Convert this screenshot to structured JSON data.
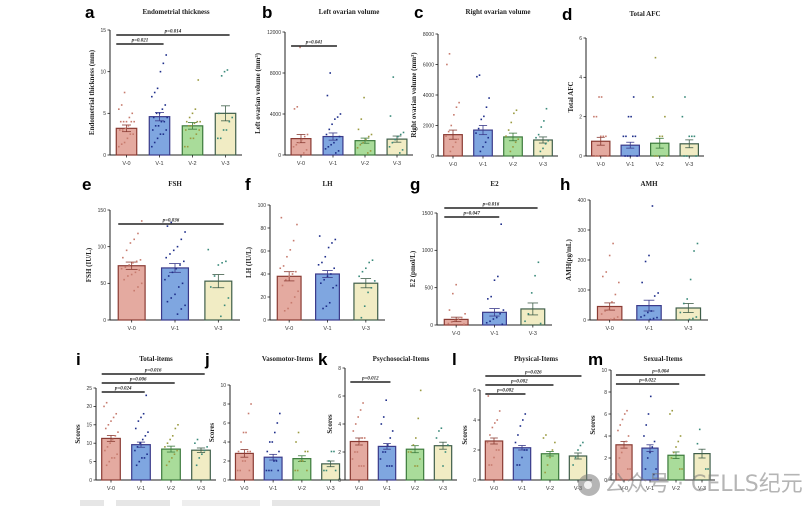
{
  "figure": {
    "group_colors": {
      "V-0": "#e4aaa0",
      "V-1": "#7fa6e0",
      "V-2": "#a9dc9a",
      "V-3": "#f1ecc4"
    },
    "group_edge_colors": {
      "V-0": "#8a3b33",
      "V-1": "#3a3a8a",
      "V-2": "#3c7a3c",
      "V-3": "#3f5e4a"
    },
    "dot_colors": {
      "V-0": "#c77b6e",
      "V-1": "#1e2e8a",
      "V-2": "#9a9a40",
      "V-3": "#3a8a7a"
    },
    "watermark": "公众号 · CELLS纪元"
  },
  "chart_data": [
    {
      "id": "a",
      "type": "bar",
      "title": "Endometrial thickness",
      "ylabel": "Endometrial thickness (mm)",
      "categories": [
        "V-0",
        "V-1",
        "V-2",
        "V-3"
      ],
      "means": [
        3.2,
        4.6,
        3.5,
        5.0
      ],
      "sem": [
        0.4,
        0.5,
        0.4,
        0.9
      ],
      "ylim": [
        0,
        15
      ],
      "yticks": [
        0,
        5,
        10,
        15
      ],
      "points": [
        [
          1,
          1.3,
          1.5,
          2,
          2.5,
          2.5,
          3,
          3,
          3.2,
          3.5,
          4,
          4,
          4,
          4,
          4,
          4.5,
          5,
          5.5,
          6,
          7.5
        ],
        [
          1,
          1.5,
          2,
          2.5,
          2.5,
          3,
          3,
          3.5,
          3.5,
          4,
          4,
          4.5,
          4.5,
          5,
          5,
          5.5,
          6,
          7,
          7.5,
          8,
          10,
          11,
          12
        ],
        [
          1,
          1,
          2,
          2,
          2.5,
          3,
          3,
          3.5,
          3.5,
          3.8,
          4,
          4,
          4,
          4.5,
          5,
          5.5,
          9
        ],
        [
          2,
          2,
          3,
          3,
          4,
          4.5,
          5,
          9.5,
          10,
          10.2
        ]
      ],
      "comparisons": [
        {
          "from": 0,
          "to": 1,
          "label": "p=0.021"
        },
        {
          "from": 0,
          "to": 3,
          "label": "p=0.014"
        }
      ]
    },
    {
      "id": "b",
      "type": "bar",
      "title": "Left ovarian volume",
      "ylabel": "Left ovarian volume (mm³)",
      "categories": [
        "V-0",
        "V-1",
        "V-2",
        "V-3"
      ],
      "means": [
        1600,
        1800,
        1400,
        1550
      ],
      "sem": [
        400,
        350,
        250,
        300
      ],
      "ylim": [
        0,
        12000
      ],
      "yticks": [
        0,
        4000,
        8000,
        12000
      ],
      "points": [
        [
          200,
          500,
          800,
          1000,
          1200,
          1500,
          1800,
          2000,
          4500,
          4700,
          10500
        ],
        [
          200,
          400,
          600,
          800,
          1000,
          1200,
          1500,
          1800,
          2000,
          2500,
          3000,
          3500,
          3700,
          4000,
          5800,
          8000
        ],
        [
          200,
          400,
          700,
          1000,
          1200,
          1500,
          1800,
          2000,
          2500,
          3500,
          5600
        ],
        [
          200,
          500,
          800,
          1200,
          1500,
          1800,
          2000,
          2200,
          3800,
          7600
        ]
      ],
      "comparisons": [
        {
          "from": 0,
          "to": 1,
          "label": "p=0.041"
        }
      ]
    },
    {
      "id": "c",
      "type": "bar",
      "title": "Right ovarian volume",
      "ylabel": "Right ovarian volume (mm³)",
      "categories": [
        "V-0",
        "V-1",
        "V-2",
        "V-3"
      ],
      "means": [
        1400,
        1700,
        1250,
        1050
      ],
      "sem": [
        300,
        300,
        250,
        200
      ],
      "ylim": [
        0,
        8000
      ],
      "yticks": [
        0,
        2000,
        4000,
        6000,
        8000
      ],
      "points": [
        [
          300,
          600,
          900,
          1100,
          1300,
          1600,
          2000,
          2700,
          3200,
          3500,
          6000,
          6700
        ],
        [
          300,
          600,
          900,
          1200,
          1500,
          1800,
          2400,
          2600,
          3200,
          3800,
          5200,
          5300
        ],
        [
          300,
          600,
          900,
          1100,
          1300,
          1700,
          2200,
          2800,
          3000
        ],
        [
          300,
          500,
          800,
          1000,
          1200,
          1400,
          1900,
          2300,
          3100
        ]
      ],
      "comparisons": []
    },
    {
      "id": "d",
      "type": "bar",
      "title": "Total AFC",
      "ylabel": "Total AFC",
      "categories": [
        "V-0",
        "V-1",
        "V-2",
        "V-3"
      ],
      "means": [
        0.75,
        0.55,
        0.65,
        0.62
      ],
      "sem": [
        0.2,
        0.15,
        0.25,
        0.2
      ],
      "ylim": [
        0,
        6
      ],
      "yticks": [
        0,
        2,
        4,
        6
      ],
      "points": [
        [
          0,
          0,
          0,
          1,
          1,
          1,
          2,
          2,
          3,
          3
        ],
        [
          0,
          0,
          0,
          0,
          1,
          1,
          1,
          1,
          2,
          2,
          3
        ],
        [
          0,
          0,
          0,
          1,
          1,
          2,
          3,
          5
        ],
        [
          0,
          0,
          0,
          1,
          1,
          1,
          2,
          3
        ]
      ],
      "comparisons": []
    },
    {
      "id": "e",
      "type": "bar",
      "title": "FSH",
      "ylabel": "FSH (IU/L)",
      "categories": [
        "V-0",
        "V-1",
        "V-3"
      ],
      "means": [
        74,
        71,
        53
      ],
      "sem": [
        5,
        6,
        9
      ],
      "ylim": [
        0,
        150
      ],
      "yticks": [
        0,
        50,
        100,
        150
      ],
      "points": [
        [
          40,
          45,
          50,
          55,
          60,
          62,
          65,
          68,
          70,
          72,
          75,
          78,
          80,
          82,
          85,
          95,
          105,
          110,
          118,
          135
        ],
        [
          8,
          15,
          20,
          25,
          30,
          35,
          45,
          50,
          55,
          60,
          65,
          70,
          75,
          80,
          85,
          90,
          95,
          100,
          110,
          120,
          128,
          133
        ],
        [
          5,
          20,
          30,
          45,
          60,
          75,
          78,
          80,
          96
        ]
      ],
      "comparisons": [
        {
          "from": 0,
          "to": 2,
          "label": "p=0.036"
        }
      ]
    },
    {
      "id": "f",
      "type": "bar",
      "title": "LH",
      "ylabel": "LH (IU/L)",
      "categories": [
        "V-0",
        "V-1",
        "V-3"
      ],
      "means": [
        38,
        40,
        32
      ],
      "sem": [
        4,
        3,
        4
      ],
      "ylim": [
        0,
        100
      ],
      "yticks": [
        0,
        20,
        40,
        60,
        80,
        100
      ],
      "points": [
        [
          8,
          10,
          15,
          20,
          25,
          30,
          35,
          38,
          40,
          42,
          45,
          47,
          55,
          61,
          69,
          83,
          89
        ],
        [
          10,
          12,
          15,
          28,
          30,
          32,
          35,
          38,
          40,
          45,
          48,
          50,
          55,
          63,
          67,
          70,
          73
        ],
        [
          2,
          12,
          24,
          28,
          34,
          38,
          42,
          45,
          50,
          52
        ]
      ],
      "comparisons": []
    },
    {
      "id": "g",
      "type": "bar",
      "title": "E2",
      "ylabel": "E2 (pmol/L)",
      "categories": [
        "V-0",
        "V-1",
        "V-3"
      ],
      "means": [
        75,
        170,
        215
      ],
      "sem": [
        30,
        50,
        80
      ],
      "ylim": [
        0,
        1500
      ],
      "yticks": [
        0,
        500,
        1000,
        1500
      ],
      "points": [
        [
          10,
          20,
          40,
          60,
          80,
          100,
          150,
          200,
          420,
          540
        ],
        [
          10,
          30,
          50,
          80,
          100,
          150,
          200,
          350,
          380,
          600,
          650,
          1350
        ],
        [
          20,
          50,
          150,
          430,
          660,
          840
        ]
      ],
      "comparisons": [
        {
          "from": 0,
          "to": 1,
          "label": "p=0.047"
        },
        {
          "from": 0,
          "to": 2,
          "label": "p=0.016"
        }
      ]
    },
    {
      "id": "h",
      "type": "bar",
      "title": "AMH",
      "ylabel": "AMH(pg/mL)",
      "categories": [
        "V-0",
        "V-1",
        "V-3"
      ],
      "means": [
        45,
        48,
        40
      ],
      "sem": [
        12,
        18,
        15
      ],
      "ylim": [
        0,
        400
      ],
      "yticks": [
        0,
        100,
        200,
        300,
        400
      ],
      "points": [
        [
          2,
          5,
          10,
          20,
          30,
          35,
          60,
          85,
          125,
          145,
          160,
          215,
          255
        ],
        [
          2,
          5,
          8,
          10,
          15,
          25,
          30,
          80,
          90,
          125,
          195,
          215,
          380
        ],
        [
          2,
          5,
          10,
          25,
          55,
          70,
          135,
          230,
          255
        ]
      ],
      "comparisons": []
    },
    {
      "id": "i",
      "type": "bar",
      "title": "Total-items",
      "ylabel": "Scores",
      "categories": [
        "V-0",
        "V-1",
        "V-2",
        "V-3"
      ],
      "means": [
        11.3,
        9.6,
        8.4,
        8.1
      ],
      "sem": [
        0.8,
        0.7,
        0.8,
        0.6
      ],
      "ylim": [
        0,
        25
      ],
      "yticks": [
        0,
        5,
        10,
        15,
        20,
        25
      ],
      "points": [
        [
          4,
          5,
          6,
          6,
          7,
          8,
          9,
          10,
          11,
          12,
          13,
          14,
          15,
          16,
          17,
          18,
          20,
          21
        ],
        [
          4,
          5,
          6,
          6,
          7,
          8,
          9,
          10,
          11,
          12,
          13,
          14,
          16,
          17,
          18,
          23
        ],
        [
          4,
          5,
          6,
          7,
          8,
          9,
          10,
          11,
          12,
          14,
          15
        ],
        [
          4,
          6,
          7,
          8,
          9,
          10,
          11
        ]
      ],
      "comparisons": [
        {
          "from": 0,
          "to": 1,
          "label": "p=0.024"
        },
        {
          "from": 0,
          "to": 2,
          "label": "p=0.006"
        },
        {
          "from": 0,
          "to": 3,
          "label": "p=0.016"
        }
      ]
    },
    {
      "id": "j",
      "type": "bar",
      "title": "Vasomotor-Items",
      "ylabel": "Scores",
      "categories": [
        "V-0",
        "V-1",
        "V-2",
        "V-3"
      ],
      "means": [
        2.8,
        2.4,
        2.25,
        1.7
      ],
      "sem": [
        0.4,
        0.3,
        0.3,
        0.3
      ],
      "ylim": [
        0,
        10
      ],
      "yticks": [
        0,
        2,
        4,
        6,
        8,
        10
      ],
      "points": [
        [
          1,
          1,
          1,
          2,
          2,
          3,
          3,
          3,
          4,
          5,
          5,
          7,
          8
        ],
        [
          1,
          1,
          1,
          1,
          2,
          2,
          3,
          3,
          4,
          4,
          5,
          6,
          7
        ],
        [
          1,
          1,
          1,
          2,
          2,
          3,
          3,
          4,
          5
        ],
        [
          1,
          1,
          1,
          2,
          3,
          3
        ]
      ],
      "comparisons": []
    },
    {
      "id": "k",
      "type": "bar",
      "title": "Psychosocial-Items",
      "ylabel": "Scores",
      "categories": [
        "V-0",
        "V-1",
        "V-2",
        "V-3"
      ],
      "means": [
        2.75,
        2.4,
        2.2,
        2.45
      ],
      "sem": [
        0.25,
        0.2,
        0.25,
        0.25
      ],
      "ylim": [
        0,
        8
      ],
      "yticks": [
        0,
        2,
        4,
        6,
        8
      ],
      "points": [
        [
          1,
          1,
          1,
          1.5,
          2,
          2,
          2.5,
          3,
          3,
          3.5,
          4,
          4.5,
          5,
          5.5
        ],
        [
          1,
          1,
          1,
          1.5,
          2,
          2,
          2.5,
          3,
          3.5,
          4,
          4.5,
          5.7
        ],
        [
          1,
          1,
          1.5,
          2,
          2,
          2.5,
          3,
          4.4,
          6.4
        ],
        [
          1,
          2,
          2.5,
          3,
          3.5,
          3.7
        ]
      ],
      "comparisons": [
        {
          "from": 0,
          "to": 1,
          "label": "p=0.012"
        }
      ]
    },
    {
      "id": "l",
      "type": "bar",
      "title": "Physical-Items",
      "ylabel": "Scores",
      "categories": [
        "V-0",
        "V-1",
        "V-2",
        "V-3"
      ],
      "means": [
        2.6,
        2.15,
        1.75,
        1.6
      ],
      "sem": [
        0.2,
        0.15,
        0.15,
        0.2
      ],
      "ylim": [
        0,
        6
      ],
      "yticks": [
        0,
        2,
        4,
        6
      ],
      "points": [
        [
          1,
          1,
          1.5,
          2,
          2,
          2.5,
          3,
          3.5,
          3.8,
          4,
          4.6,
          5.6
        ],
        [
          1,
          1,
          1.5,
          2,
          2,
          2.5,
          3,
          3.6,
          4,
          4.4
        ],
        [
          0.5,
          1,
          1.5,
          2,
          2.5,
          2.8,
          3
        ],
        [
          1,
          1.5,
          2,
          2.3,
          2.5
        ]
      ],
      "comparisons": [
        {
          "from": 0,
          "to": 1,
          "label": "p=0.002"
        },
        {
          "from": 0,
          "to": 2,
          "label": "p=0.002"
        },
        {
          "from": 0,
          "to": 3,
          "label": "p=0.026"
        }
      ]
    },
    {
      "id": "m",
      "type": "bar",
      "title": "Sexual-Items",
      "ylabel": "Scores",
      "categories": [
        "V-0",
        "V-1",
        "V-2",
        "V-3"
      ],
      "means": [
        3.2,
        2.9,
        2.25,
        2.4
      ],
      "sem": [
        0.3,
        0.3,
        0.3,
        0.4
      ],
      "ylim": [
        0,
        10
      ],
      "yticks": [
        0,
        2,
        4,
        6,
        8,
        10
      ],
      "points": [
        [
          1,
          1,
          2,
          2.5,
          3,
          3.5,
          4,
          4.5,
          5,
          5.5,
          6,
          6.3
        ],
        [
          0.5,
          1,
          1,
          2,
          2.5,
          3,
          3.5,
          4,
          5,
          6,
          7.6
        ],
        [
          1,
          1,
          2,
          2.5,
          3,
          3.5,
          4,
          6,
          6.3
        ],
        [
          1,
          1,
          3.3,
          4.6
        ]
      ],
      "comparisons": [
        {
          "from": 0,
          "to": 2,
          "label": "p=0.022"
        },
        {
          "from": 0,
          "to": 3,
          "label": "p=0.004"
        }
      ]
    }
  ]
}
